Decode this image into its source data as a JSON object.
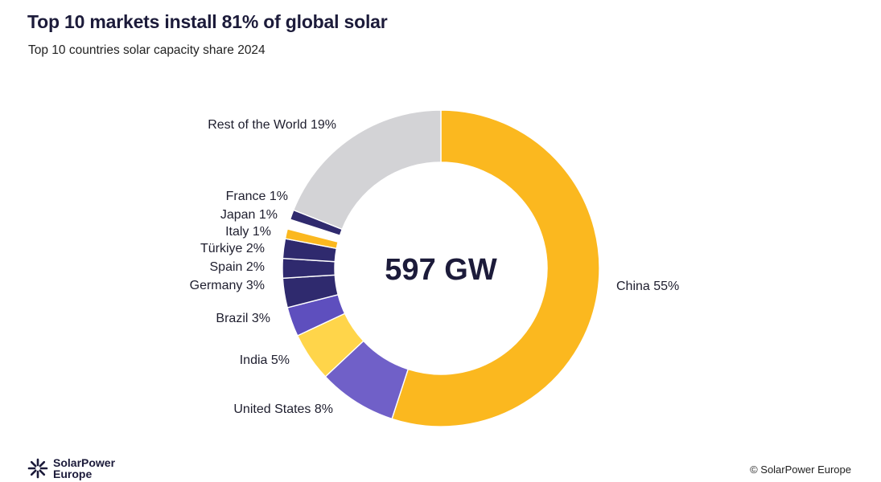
{
  "header": {
    "title": "Top 10 markets install 81% of global solar",
    "subtitle": "Top 10 countries solar capacity share 2024"
  },
  "chart_data": {
    "type": "pie",
    "variant": "donut",
    "center_label": "597 GW",
    "direction": "clockwise-from-top",
    "slices": [
      {
        "name": "China",
        "value": 55,
        "label": "China 55%",
        "color": "#FBB81F"
      },
      {
        "name": "United States",
        "value": 8,
        "label": "United States 8%",
        "color": "#7060C8"
      },
      {
        "name": "India",
        "value": 5,
        "label": "India 5%",
        "color": "#FFD54A"
      },
      {
        "name": "Brazil",
        "value": 3,
        "label": "Brazil 3%",
        "color": "#5E4FBE"
      },
      {
        "name": "Germany",
        "value": 3,
        "label": "Germany 3%",
        "color": "#2F2A6E"
      },
      {
        "name": "Spain",
        "value": 2,
        "label": "Spain 2%",
        "color": "#2F2A6E"
      },
      {
        "name": "Türkiye",
        "value": 2,
        "label": "Türkiye 2%",
        "color": "#2F2A6E"
      },
      {
        "name": "Italy",
        "value": 1,
        "label": "Italy 1%",
        "color": "#FBB81F"
      },
      {
        "name": "Japan",
        "value": 1,
        "label": "Japan 1%",
        "color": "#FFFFFF"
      },
      {
        "name": "France",
        "value": 1,
        "label": "France 1%",
        "color": "#2F2A6E"
      },
      {
        "name": "Rest of the World",
        "value": 19,
        "label": "Rest of the World 19%",
        "color": "#D3D3D6"
      }
    ]
  },
  "footer": {
    "logo_line1": "SolarPower",
    "logo_line2": "Europe",
    "logo_icon": "sun-burst-icon",
    "copyright": "© SolarPower Europe"
  }
}
